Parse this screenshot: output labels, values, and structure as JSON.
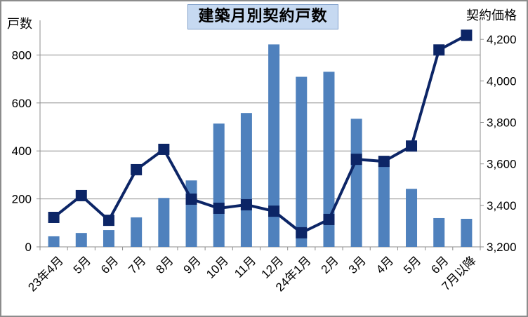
{
  "chart_data": {
    "type": "bar+line",
    "title": "建築月別契約戸数",
    "ylabel": "戸数",
    "y2label": "契約価格",
    "categories": [
      "23年4月",
      "5月",
      "6月",
      "7月",
      "8月",
      "9月",
      "10月",
      "11月",
      "12月",
      "24年1月",
      "2月",
      "3月",
      "4月",
      "5月",
      "6月",
      "7月以降"
    ],
    "series": [
      {
        "type": "bar",
        "axis": "left",
        "color": "#4f81bd",
        "values": [
          44,
          58,
          70,
          123,
          204,
          277,
          514,
          558,
          844,
          709,
          730,
          534,
          360,
          242,
          120,
          117
        ]
      },
      {
        "type": "line",
        "axis": "right",
        "color": "#0c2566",
        "marker": "square",
        "values": [
          3342,
          3447,
          3328,
          3572,
          3670,
          3430,
          3386,
          3403,
          3372,
          3268,
          3332,
          3622,
          3612,
          3686,
          4149,
          4220
        ]
      }
    ],
    "ylim": [
      0,
      1000
    ],
    "yticks": [
      "0",
      "200",
      "400",
      "600",
      "800"
    ],
    "y2lim": [
      3200,
      4400
    ],
    "y2ticks": [
      "3,200",
      "3,400",
      "3,600",
      "3,800",
      "4,000",
      "4,200"
    ],
    "grid": true
  }
}
